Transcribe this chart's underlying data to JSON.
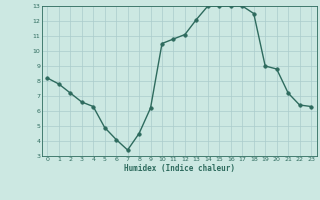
{
  "x": [
    0,
    1,
    2,
    3,
    4,
    5,
    6,
    7,
    8,
    9,
    10,
    11,
    12,
    13,
    14,
    15,
    16,
    17,
    18,
    19,
    20,
    21,
    22,
    23
  ],
  "y": [
    8.2,
    7.8,
    7.2,
    6.6,
    6.3,
    4.9,
    4.1,
    3.4,
    4.5,
    6.2,
    10.5,
    10.8,
    11.1,
    12.1,
    13.0,
    13.0,
    13.0,
    13.0,
    12.5,
    9.0,
    8.8,
    7.2,
    6.4,
    6.3
  ],
  "line_color": "#2e6b5e",
  "marker_color": "#2e6b5e",
  "bg_color": "#cce8e2",
  "grid_color": "#aacccc",
  "xlabel": "Humidex (Indice chaleur)",
  "xlabel_color": "#2e6b5e",
  "tick_color": "#2e6b5e",
  "xlim": [
    -0.5,
    23.5
  ],
  "ylim": [
    3,
    13
  ],
  "yticks": [
    3,
    4,
    5,
    6,
    7,
    8,
    9,
    10,
    11,
    12,
    13
  ],
  "xticks": [
    0,
    1,
    2,
    3,
    4,
    5,
    6,
    7,
    8,
    9,
    10,
    11,
    12,
    13,
    14,
    15,
    16,
    17,
    18,
    19,
    20,
    21,
    22,
    23
  ],
  "linewidth": 1.0,
  "markersize": 2.5
}
